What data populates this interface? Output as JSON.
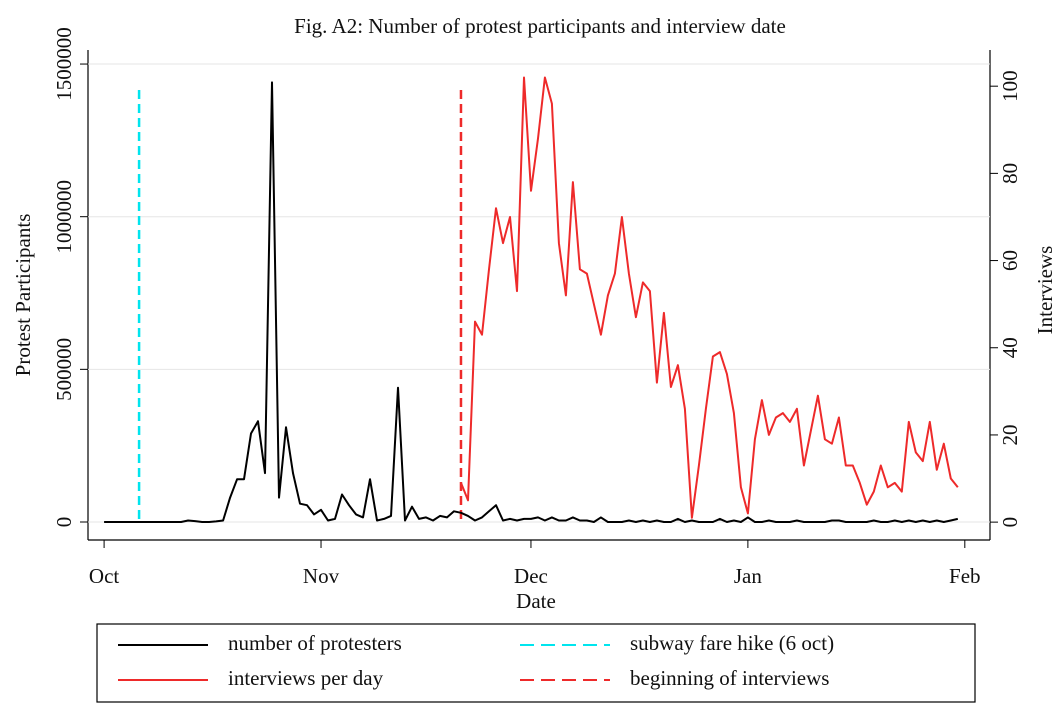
{
  "chart_data": {
    "type": "line",
    "title": "Fig. A2: Number of protest participants and interview date",
    "xlabel": "Date",
    "ylabel": "Protest Participants",
    "y2label": "Interviews",
    "xlim": [
      -2.3,
      126.6
    ],
    "xticks": [
      {
        "value": 0,
        "label": "Oct"
      },
      {
        "value": 31,
        "label": "Nov"
      },
      {
        "value": 61,
        "label": "Dec"
      },
      {
        "value": 92,
        "label": "Jan"
      },
      {
        "value": 123,
        "label": "Feb"
      }
    ],
    "ylim": [
      -59000,
      1546000
    ],
    "yticks": [
      0,
      500000,
      1000000,
      1500000
    ],
    "y2lim": [
      -4.1,
      108.3
    ],
    "y2ticks": [
      0,
      20,
      40,
      60,
      80,
      100
    ],
    "grid": true,
    "series": [
      {
        "name": "number of protesters",
        "color": "#000000",
        "x": [
          0,
          1,
          2,
          3,
          4,
          5,
          6,
          7,
          8,
          9,
          10,
          11,
          12,
          13,
          14,
          15,
          16,
          17,
          18,
          19,
          20,
          21,
          22,
          23,
          24,
          25,
          26,
          27,
          28,
          29,
          30,
          31,
          32,
          33,
          34,
          35,
          36,
          37,
          38,
          39,
          40,
          41,
          42,
          43,
          44,
          45,
          46,
          47,
          48,
          49,
          50,
          51,
          52,
          53,
          54,
          55,
          56,
          57,
          58,
          59,
          60,
          61,
          62,
          63,
          64,
          65,
          66,
          67,
          68,
          69,
          70,
          71,
          72,
          73,
          74,
          75,
          76,
          77,
          78,
          79,
          80,
          81,
          82,
          83,
          84,
          85,
          86,
          87,
          88,
          89,
          90,
          91,
          92,
          93,
          94,
          95,
          96,
          97,
          98,
          99,
          100,
          101,
          102,
          103,
          104,
          105,
          106,
          107,
          108,
          109,
          110,
          111,
          112,
          113,
          114,
          115,
          116,
          117,
          118,
          119,
          120,
          121,
          122
        ],
        "values": [
          0,
          0,
          0,
          0,
          0,
          0,
          0,
          0,
          0,
          0,
          0,
          0,
          5000,
          3000,
          0,
          0,
          2000,
          5000,
          80000,
          140000,
          140000,
          290000,
          330000,
          160000,
          1440000,
          80000,
          310000,
          160000,
          60000,
          55000,
          25000,
          40000,
          5000,
          10000,
          90000,
          55000,
          25000,
          15000,
          140000,
          5000,
          10000,
          20000,
          440000,
          5000,
          50000,
          10000,
          15000,
          5000,
          20000,
          15000,
          35000,
          30000,
          20000,
          5000,
          15000,
          35000,
          55000,
          5000,
          10000,
          5000,
          10000,
          10000,
          15000,
          5000,
          15000,
          5000,
          5000,
          15000,
          5000,
          5000,
          0,
          15000,
          0,
          0,
          0,
          5000,
          0,
          5000,
          0,
          5000,
          0,
          0,
          10000,
          0,
          5000,
          0,
          0,
          0,
          10000,
          0,
          5000,
          0,
          15000,
          0,
          0,
          5000,
          0,
          0,
          0,
          5000,
          0,
          0,
          0,
          0,
          5000,
          5000,
          0,
          0,
          0,
          0,
          5000,
          0,
          0,
          5000,
          0,
          5000,
          0,
          5000,
          0,
          5000,
          0,
          5000,
          10000
        ]
      },
      {
        "name": "interviews per day",
        "color": "#ee2a2a",
        "axis": "y2",
        "x": [
          51,
          52,
          53,
          54,
          55,
          56,
          57,
          58,
          59,
          60,
          61,
          62,
          63,
          64,
          65,
          66,
          67,
          68,
          69,
          70,
          71,
          72,
          73,
          74,
          75,
          76,
          77,
          78,
          79,
          80,
          81,
          82,
          83,
          84,
          85,
          86,
          87,
          88,
          89,
          90,
          91,
          92,
          93,
          94,
          95,
          96,
          97,
          98,
          99,
          100,
          101,
          102,
          103,
          104,
          105,
          106,
          107,
          108,
          109,
          110,
          111,
          112,
          113,
          114,
          115,
          116,
          117,
          118,
          119,
          120,
          121,
          122
        ],
        "values": [
          9,
          5,
          46,
          43,
          58,
          72,
          64,
          70,
          53,
          102,
          76,
          88,
          102,
          96,
          64,
          52,
          78,
          58,
          57,
          50,
          43,
          52,
          57,
          70,
          57,
          47,
          55,
          53,
          32,
          48,
          31,
          36,
          26,
          1,
          13,
          26,
          38,
          39,
          34,
          25,
          8,
          2,
          19,
          28,
          20,
          24,
          25,
          23,
          26,
          13,
          21,
          29,
          19,
          18,
          24,
          13,
          13,
          9,
          4,
          7,
          13,
          8,
          9,
          7,
          23,
          16,
          14,
          23,
          12,
          18,
          10,
          8
        ]
      }
    ],
    "vlines": [
      {
        "name": "subway fare hike (6 oct)",
        "x": 5,
        "color": "#00e5ee"
      },
      {
        "name": "beginning of interviews",
        "x": 51,
        "color": "#ee2a2a"
      }
    ]
  }
}
